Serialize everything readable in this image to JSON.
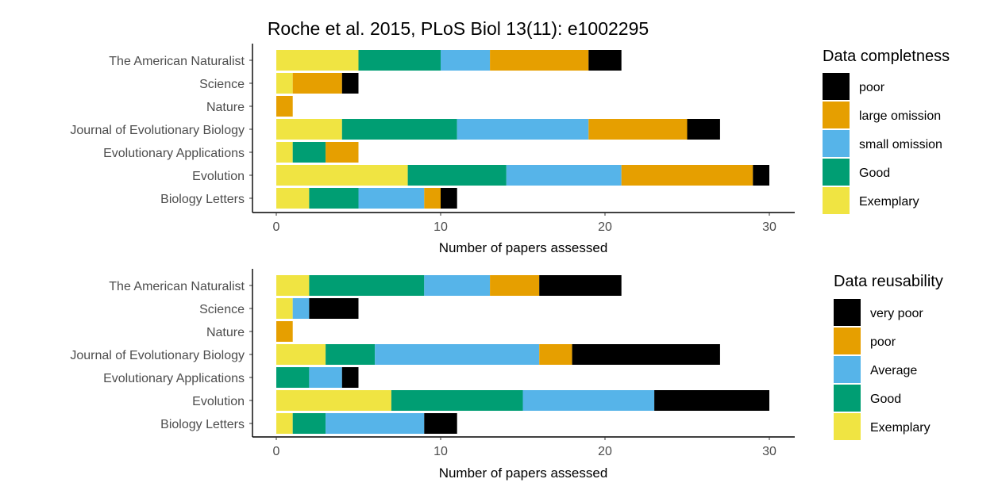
{
  "chart_data": [
    {
      "type": "bar",
      "orientation": "horizontal",
      "stacked": true,
      "title": "Roche et al. 2015, PLoS Biol 13(11): e1002295",
      "categories": [
        "The American Naturalist",
        "Science",
        "Nature",
        "Journal of Evolutionary Biology",
        "Evolutionary Applications",
        "Evolution",
        "Biology Letters"
      ],
      "xlabel": "Number of papers assessed",
      "ylabel": "",
      "xlim": [
        0,
        31
      ],
      "xticks": [
        0,
        10,
        20,
        30
      ],
      "grid": false,
      "legend_title": "Data completness",
      "legend_position": "right",
      "series": [
        {
          "name": "Exemplary",
          "color": "#F0E442",
          "values": [
            5,
            1,
            0,
            4,
            1,
            8,
            2
          ]
        },
        {
          "name": "Good",
          "color": "#009E73",
          "values": [
            5,
            0,
            0,
            7,
            2,
            6,
            3
          ]
        },
        {
          "name": "small omission",
          "color": "#56B4E9",
          "values": [
            3,
            0,
            0,
            8,
            0,
            7,
            4
          ]
        },
        {
          "name": "large omission",
          "color": "#E69F00",
          "values": [
            6,
            3,
            1,
            6,
            2,
            8,
            1
          ]
        },
        {
          "name": "poor",
          "color": "#000000",
          "values": [
            2,
            1,
            0,
            2,
            0,
            1,
            1
          ]
        }
      ]
    },
    {
      "type": "bar",
      "orientation": "horizontal",
      "stacked": true,
      "title": "",
      "categories": [
        "The American Naturalist",
        "Science",
        "Nature",
        "Journal of Evolutionary Biology",
        "Evolutionary Applications",
        "Evolution",
        "Biology Letters"
      ],
      "xlabel": "Number of papers assessed",
      "ylabel": "",
      "xlim": [
        0,
        31
      ],
      "xticks": [
        0,
        10,
        20,
        30
      ],
      "grid": false,
      "legend_title": "Data reusability",
      "legend_position": "right",
      "series": [
        {
          "name": "Exemplary",
          "color": "#F0E442",
          "values": [
            2,
            1,
            0,
            3,
            0,
            7,
            1
          ]
        },
        {
          "name": "Good",
          "color": "#009E73",
          "values": [
            7,
            0,
            0,
            3,
            2,
            8,
            2
          ]
        },
        {
          "name": "Average",
          "color": "#56B4E9",
          "values": [
            4,
            1,
            0,
            10,
            2,
            8,
            6
          ]
        },
        {
          "name": "poor",
          "color": "#E69F00",
          "values": [
            3,
            0,
            1,
            2,
            0,
            0,
            0
          ]
        },
        {
          "name": "very poor",
          "color": "#000000",
          "values": [
            5,
            3,
            0,
            9,
            1,
            7,
            2
          ]
        }
      ]
    }
  ]
}
